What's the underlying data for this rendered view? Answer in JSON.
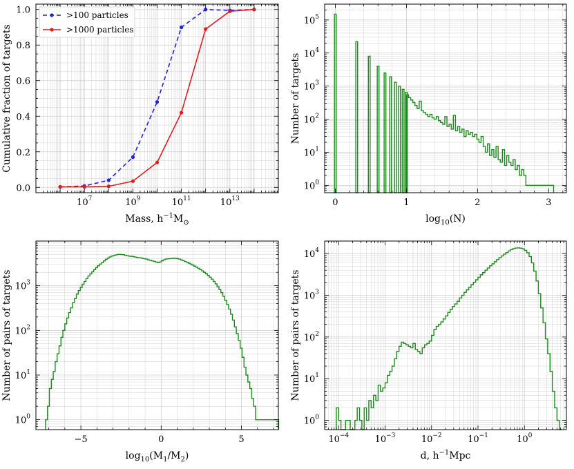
{
  "colors": {
    "dashed_blue": "#1f1fe6",
    "solid_red": "#e31a1c",
    "green": "#1a8a1a",
    "grid": "#d0d0d0"
  },
  "chart_data": [
    {
      "type": "line",
      "xlabel": "Mass, h",
      "xlabel_sup": "−1",
      "xlabel_tail": "M",
      "xlabel_sub": "⊙",
      "ylabel": "Cumulative fraction of targets",
      "xscale": "log",
      "xlim": [
        100000.0,
        1000000000000000.0
      ],
      "ylim": [
        -0.03,
        1.03
      ],
      "xticks": [
        {
          "v": 10000000.0,
          "base": "10",
          "exp": "7"
        },
        {
          "v": 1000000000.0,
          "base": "10",
          "exp": "9"
        },
        {
          "v": 100000000000.0,
          "base": "10",
          "exp": "11"
        },
        {
          "v": 10000000000000.0,
          "base": "10",
          "exp": "13"
        }
      ],
      "yticks": [
        {
          "v": 0,
          "label": "0.0"
        },
        {
          "v": 0.2,
          "label": "0.2"
        },
        {
          "v": 0.4,
          "label": "0.4"
        },
        {
          "v": 0.6,
          "label": "0.6"
        },
        {
          "v": 0.8,
          "label": "0.8"
        },
        {
          "v": 1.0,
          "label": "1.0"
        }
      ],
      "legend_position": "top-left",
      "series": [
        {
          "name": ">100 particles",
          "style": "dashed",
          "color": "#1f1fe6",
          "x": [
            1000000.0,
            10000000.0,
            100000000.0,
            1000000000.0,
            10000000000.0,
            100000000000.0,
            1000000000000.0,
            10000000000000.0,
            100000000000000.0
          ],
          "y": [
            0.003,
            0.008,
            0.04,
            0.17,
            0.48,
            0.9,
            1.0,
            0.995,
            1.0
          ]
        },
        {
          "name": ">1000 particles",
          "style": "solid",
          "color": "#e31a1c",
          "x": [
            1000000.0,
            10000000.0,
            100000000.0,
            1000000000.0,
            10000000000.0,
            100000000000.0,
            1000000000000.0,
            10000000000000.0,
            100000000000000.0
          ],
          "y": [
            0.003,
            0.003,
            0.006,
            0.035,
            0.14,
            0.42,
            0.89,
            0.99,
            1.0
          ]
        }
      ]
    },
    {
      "type": "histogram",
      "xlabel": "log",
      "xlabel_sub": "10",
      "xlabel_tail": "(N)",
      "ylabel": "Number of targets",
      "yscale": "log",
      "xlim": [
        -0.15,
        3.25
      ],
      "ylim": [
        0.6,
        300000.0
      ],
      "xticks": [
        {
          "v": 0,
          "label": "0"
        },
        {
          "v": 1,
          "label": "1"
        },
        {
          "v": 2,
          "label": "2"
        },
        {
          "v": 3,
          "label": "3"
        }
      ],
      "yticks": [
        {
          "v": 1,
          "base": "10",
          "exp": "0"
        },
        {
          "v": 10,
          "base": "10",
          "exp": "1"
        },
        {
          "v": 100,
          "base": "10",
          "exp": "2"
        },
        {
          "v": 1000,
          "base": "10",
          "exp": "3"
        },
        {
          "v": 10000,
          "base": "10",
          "exp": "4"
        },
        {
          "v": 100000,
          "base": "10",
          "exp": "5"
        }
      ],
      "discrete": [
        {
          "x": 0.0,
          "y": 150000
        },
        {
          "x": 0.301,
          "y": 22000
        },
        {
          "x": 0.477,
          "y": 8000
        },
        {
          "x": 0.602,
          "y": 4000
        },
        {
          "x": 0.699,
          "y": 2500
        },
        {
          "x": 0.778,
          "y": 1900
        },
        {
          "x": 0.845,
          "y": 1300
        },
        {
          "x": 0.903,
          "y": 1000
        },
        {
          "x": 0.954,
          "y": 800
        },
        {
          "x": 1.0,
          "y": 650
        }
      ],
      "continuous": {
        "x_start": 1.0,
        "bin_width": 0.03,
        "counts": [
          550,
          450,
          380,
          320,
          260,
          210,
          350,
          180,
          160,
          140,
          120,
          140,
          110,
          100,
          120,
          90,
          80,
          70,
          120,
          60,
          70,
          50,
          130,
          45,
          60,
          40,
          50,
          30,
          45,
          35,
          40,
          30,
          35,
          25,
          20,
          30,
          15,
          10,
          18,
          8,
          12,
          7,
          15,
          6,
          5,
          12,
          4,
          8,
          5,
          4,
          6,
          3,
          4,
          2,
          3,
          2,
          1,
          1,
          1,
          1,
          1,
          1,
          1,
          1,
          1,
          1,
          1,
          1,
          1
        ]
      }
    },
    {
      "type": "histogram",
      "xlabel": "log",
      "xlabel_sub": "10",
      "xlabel_tail": "(M",
      "xlabel_sub2": "1",
      "xlabel_mid": "/M",
      "xlabel_sub3": "2",
      "xlabel_end": ")",
      "ylabel": "Number of pairs of targets",
      "yscale": "log",
      "xlim": [
        -7.8,
        7.3
      ],
      "ylim": [
        0.6,
        10000.0
      ],
      "xticks": [
        {
          "v": -5,
          "label": "−5"
        },
        {
          "v": 0,
          "label": "0"
        },
        {
          "v": 5,
          "label": "5"
        }
      ],
      "yticks": [
        {
          "v": 1,
          "base": "10",
          "exp": "0"
        },
        {
          "v": 10,
          "base": "10",
          "exp": "1"
        },
        {
          "v": 100,
          "base": "10",
          "exp": "2"
        },
        {
          "v": 1000,
          "base": "10",
          "exp": "3"
        }
      ],
      "x_start": -7.2,
      "bin_width": 0.12,
      "counts": [
        1,
        2,
        5,
        8,
        12,
        20,
        30,
        45,
        70,
        100,
        140,
        190,
        250,
        320,
        420,
        520,
        650,
        780,
        920,
        1080,
        1250,
        1450,
        1650,
        1850,
        2050,
        2300,
        2550,
        2800,
        3050,
        3300,
        3600,
        3900,
        4150,
        4400,
        4600,
        4750,
        4900,
        5000,
        5050,
        5000,
        4950,
        4800,
        4700,
        4600,
        4550,
        4500,
        4400,
        4300,
        4250,
        4200,
        4100,
        4000,
        3950,
        3800,
        3700,
        3600,
        3500,
        3400,
        3300,
        3400,
        3600,
        3800,
        3950,
        4000,
        4050,
        4100,
        4150,
        4100,
        4050,
        3950,
        3800,
        3650,
        3500,
        3350,
        3200,
        3050,
        2900,
        2750,
        2600,
        2450,
        2300,
        2150,
        2000,
        1850,
        1700,
        1550,
        1400,
        1250,
        1100,
        950,
        820,
        700,
        580,
        470,
        380,
        300,
        230,
        170,
        120,
        85,
        60,
        40,
        25,
        15,
        10,
        7,
        5,
        3,
        2,
        1,
        1,
        1,
        1,
        1,
        1,
        1,
        1,
        1,
        1,
        1,
        1
      ]
    },
    {
      "type": "histogram",
      "xlabel": "d, h",
      "xlabel_sup": "−1",
      "xlabel_tail": "Mpc",
      "ylabel": "Number of pairs of targets",
      "xscale": "log",
      "yscale": "log",
      "xlim": [
        5e-05,
        8.0
      ],
      "ylim": [
        0.6,
        20000.0
      ],
      "xticks": [
        {
          "v": 0.0001,
          "base": "10",
          "exp": "−4"
        },
        {
          "v": 0.001,
          "base": "10",
          "exp": "−3"
        },
        {
          "v": 0.01,
          "base": "10",
          "exp": "−2"
        },
        {
          "v": 0.1,
          "base": "10",
          "exp": "−1"
        },
        {
          "v": 1,
          "base": "10",
          "exp": "0"
        }
      ],
      "yticks": [
        {
          "v": 1,
          "base": "10",
          "exp": "0"
        },
        {
          "v": 10,
          "base": "10",
          "exp": "1"
        },
        {
          "v": 100,
          "base": "10",
          "exp": "2"
        },
        {
          "v": 1000,
          "base": "10",
          "exp": "3"
        },
        {
          "v": 10000,
          "base": "10",
          "exp": "4"
        }
      ],
      "log_x_start": -4.05,
      "log_bin_width": 0.05,
      "counts": [
        2,
        1,
        0,
        0,
        1,
        1,
        0,
        0,
        1,
        2,
        1,
        0,
        2,
        1,
        3,
        2,
        4,
        3,
        7,
        5,
        6,
        8,
        12,
        15,
        20,
        30,
        45,
        60,
        75,
        70,
        65,
        60,
        55,
        70,
        50,
        45,
        40,
        55,
        65,
        70,
        80,
        110,
        150,
        180,
        200,
        230,
        270,
        320,
        390,
        460,
        540,
        620,
        720,
        860,
        1000,
        1180,
        1350,
        1550,
        1800,
        2050,
        2350,
        2700,
        3100,
        3500,
        4000,
        4500,
        5100,
        5700,
        6400,
        7200,
        8000,
        8800,
        9700,
        10600,
        11600,
        12500,
        13200,
        13600,
        13700,
        13500,
        13000,
        12000,
        10500,
        8500,
        6000,
        3800,
        2200,
        1100,
        500,
        220,
        90,
        40,
        15,
        5,
        2,
        1,
        0
      ]
    }
  ]
}
